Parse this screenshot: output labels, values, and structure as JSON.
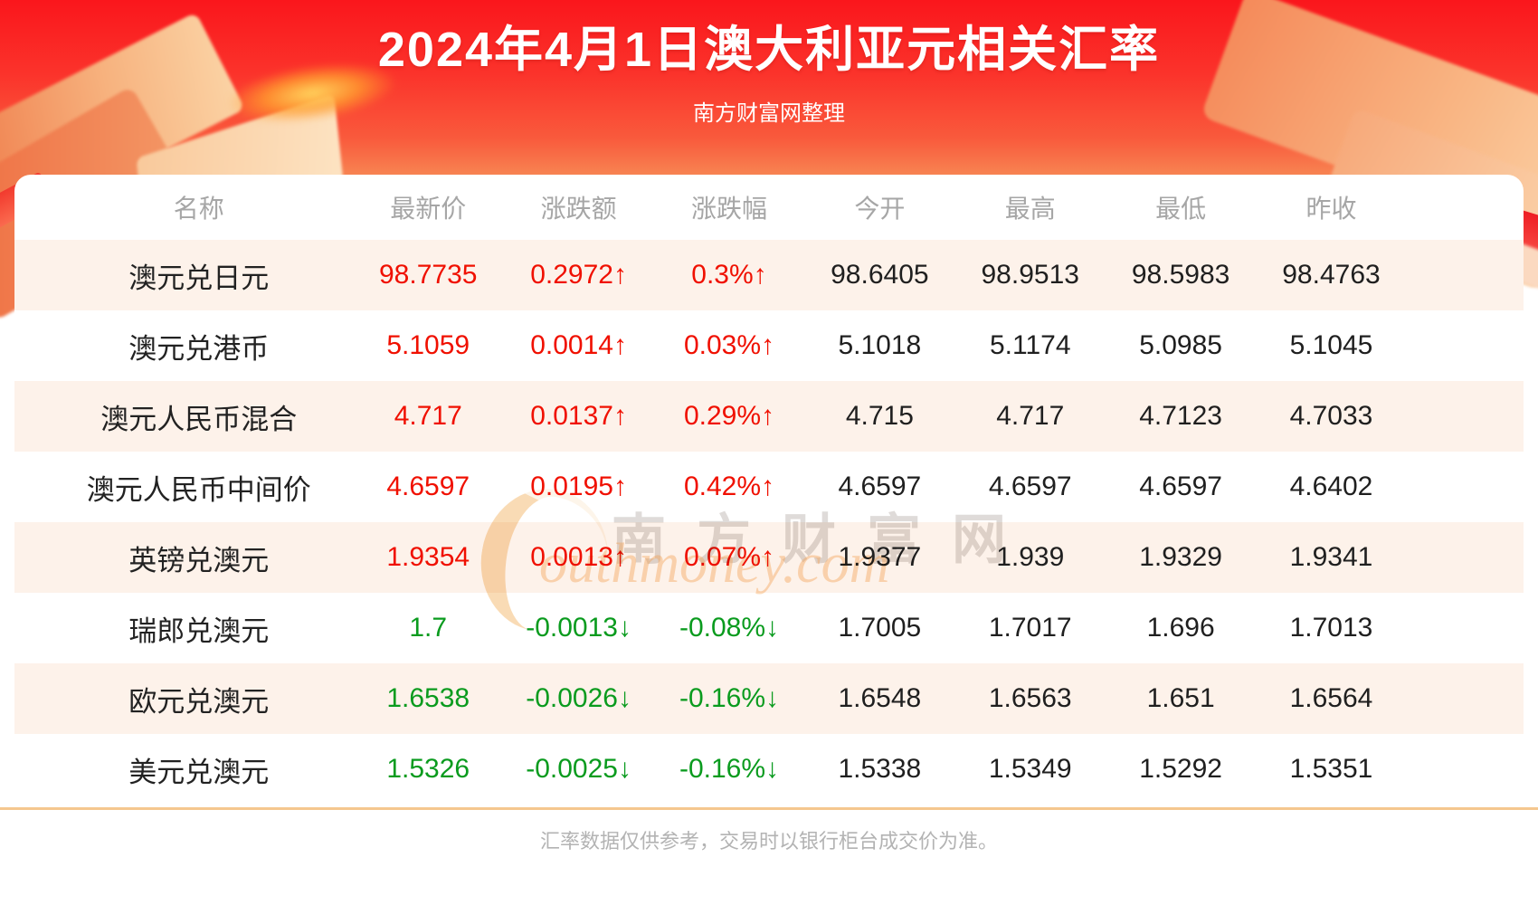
{
  "page": {
    "title": "2024年4月1日澳大利亚元相关汇率",
    "subtitle": "南方财富网整理",
    "footer_note": "汇率数据仅供参考，交易时以银行柜台成交价为准。"
  },
  "watermark": {
    "cn": "南方财富网",
    "en": "outhmoney.com"
  },
  "colors": {
    "up": "#f01000",
    "down": "#0a9b1e",
    "banner_red_top": "#fa161c",
    "banner_red_bottom": "#f9bd85",
    "row_alt_bg": "#fdf2ea",
    "header_text": "#a6a6a6",
    "divider": "#f5c78f"
  },
  "table": {
    "columns": [
      "名称",
      "最新价",
      "涨跌额",
      "涨跌幅",
      "今开",
      "最高",
      "最低",
      "昨收"
    ],
    "arrows": {
      "up": "↑",
      "down": "↓"
    },
    "rows": [
      {
        "name": "澳元兑日元",
        "last": "98.7735",
        "change": "0.2972",
        "change_pct": "0.3%",
        "trend": "up",
        "open": "98.6405",
        "high": "98.9513",
        "low": "98.5983",
        "prev_close": "98.4763"
      },
      {
        "name": "澳元兑港币",
        "last": "5.1059",
        "change": "0.0014",
        "change_pct": "0.03%",
        "trend": "up",
        "open": "5.1018",
        "high": "5.1174",
        "low": "5.0985",
        "prev_close": "5.1045"
      },
      {
        "name": "澳元人民币混合",
        "last": "4.717",
        "change": "0.0137",
        "change_pct": "0.29%",
        "trend": "up",
        "open": "4.715",
        "high": "4.717",
        "low": "4.7123",
        "prev_close": "4.7033"
      },
      {
        "name": "澳元人民币中间价",
        "last": "4.6597",
        "change": "0.0195",
        "change_pct": "0.42%",
        "trend": "up",
        "open": "4.6597",
        "high": "4.6597",
        "low": "4.6597",
        "prev_close": "4.6402"
      },
      {
        "name": "英镑兑澳元",
        "last": "1.9354",
        "change": "0.0013",
        "change_pct": "0.07%",
        "trend": "up",
        "open": "1.9377",
        "high": "1.939",
        "low": "1.9329",
        "prev_close": "1.9341"
      },
      {
        "name": "瑞郎兑澳元",
        "last": "1.7",
        "change": "-0.0013",
        "change_pct": "-0.08%",
        "trend": "down",
        "open": "1.7005",
        "high": "1.7017",
        "low": "1.696",
        "prev_close": "1.7013"
      },
      {
        "name": "欧元兑澳元",
        "last": "1.6538",
        "change": "-0.0026",
        "change_pct": "-0.16%",
        "trend": "down",
        "open": "1.6548",
        "high": "1.6563",
        "low": "1.651",
        "prev_close": "1.6564"
      },
      {
        "name": "美元兑澳元",
        "last": "1.5326",
        "change": "-0.0025",
        "change_pct": "-0.16%",
        "trend": "down",
        "open": "1.5338",
        "high": "1.5349",
        "low": "1.5292",
        "prev_close": "1.5351"
      }
    ]
  },
  "chart_data": {
    "type": "table",
    "title": "2024年4月1日澳大利亚元相关汇率",
    "columns": [
      "名称",
      "最新价",
      "涨跌额",
      "涨跌幅",
      "今开",
      "最高",
      "最低",
      "昨收"
    ],
    "rows": [
      [
        "澳元兑日元",
        "98.7735",
        "0.2972↑",
        "0.3%↑",
        "98.6405",
        "98.9513",
        "98.5983",
        "98.4763"
      ],
      [
        "澳元兑港币",
        "5.1059",
        "0.0014↑",
        "0.03%↑",
        "5.1018",
        "5.1174",
        "5.0985",
        "5.1045"
      ],
      [
        "澳元人民币混合",
        "4.717",
        "0.0137↑",
        "0.29%↑",
        "4.715",
        "4.717",
        "4.7123",
        "4.7033"
      ],
      [
        "澳元人民币中间价",
        "4.6597",
        "0.0195↑",
        "0.42%↑",
        "4.6597",
        "4.6597",
        "4.6597",
        "4.6402"
      ],
      [
        "英镑兑澳元",
        "1.9354",
        "0.0013↑",
        "0.07%↑",
        "1.9377",
        "1.939",
        "1.9329",
        "1.9341"
      ],
      [
        "瑞郎兑澳元",
        "1.7",
        "-0.0013↓",
        "-0.08%↓",
        "1.7005",
        "1.7017",
        "1.696",
        "1.7013"
      ],
      [
        "欧元兑澳元",
        "1.6538",
        "-0.0026↓",
        "-0.16%↓",
        "1.6548",
        "1.6563",
        "1.651",
        "1.6564"
      ],
      [
        "美元兑澳元",
        "1.5326",
        "-0.0025↓",
        "-0.16%↓",
        "1.5338",
        "1.5349",
        "1.5292",
        "1.5351"
      ]
    ]
  }
}
